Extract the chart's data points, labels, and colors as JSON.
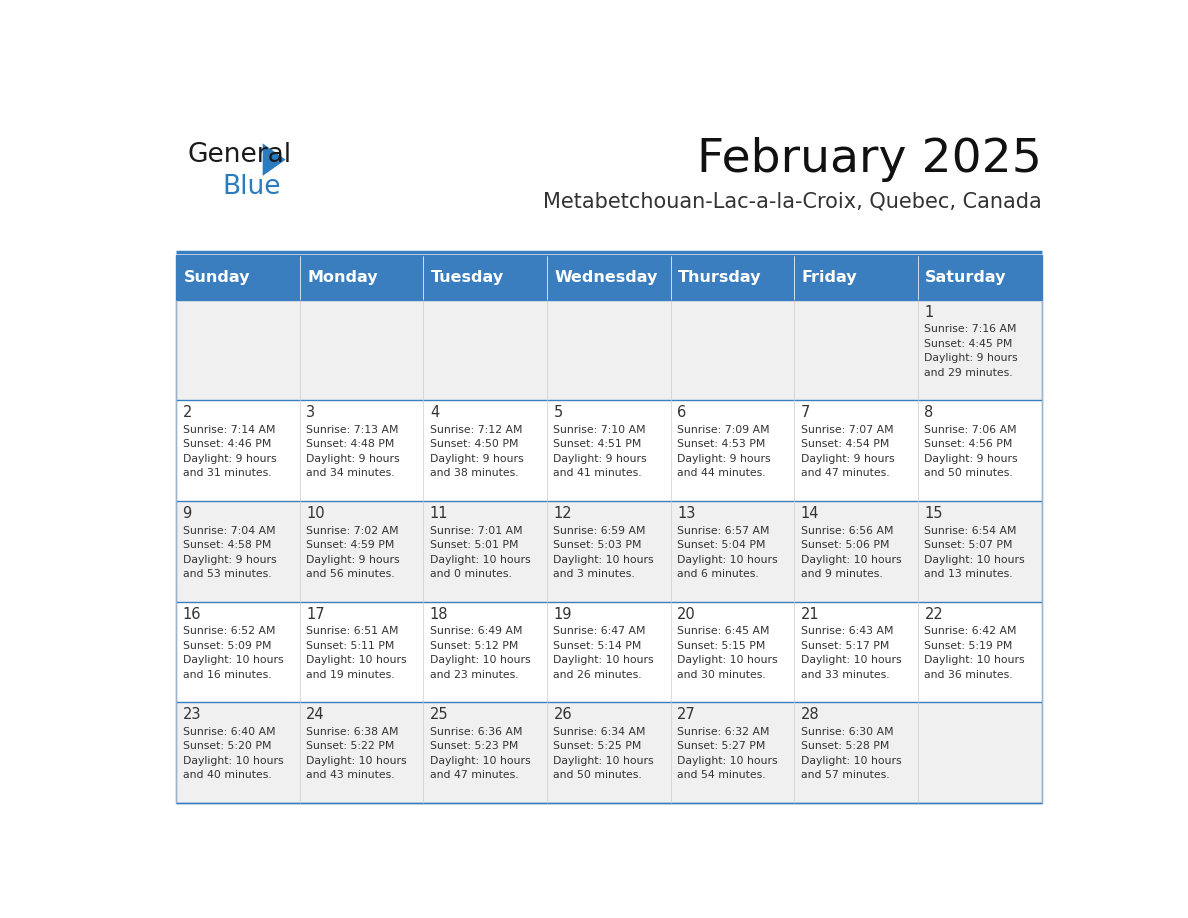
{
  "title": "February 2025",
  "subtitle": "Metabetchouan-Lac-a-la-Croix, Quebec, Canada",
  "header_bg": "#3a7ebf",
  "header_text": "#ffffff",
  "header_days": [
    "Sunday",
    "Monday",
    "Tuesday",
    "Wednesday",
    "Thursday",
    "Friday",
    "Saturday"
  ],
  "odd_row_bg": "#f0f0f0",
  "even_row_bg": "#ffffff",
  "cell_border": "#3a7ebf",
  "day_number_color": "#333333",
  "info_text_color": "#333333",
  "logo_general_color": "#1a1a1a",
  "logo_blue_color": "#2a7bbf",
  "calendar_data": [
    {
      "day": 1,
      "col": 6,
      "row": 0,
      "sunrise": "7:16 AM",
      "sunset": "4:45 PM",
      "daylight": "9 hours and 29 minutes."
    },
    {
      "day": 2,
      "col": 0,
      "row": 1,
      "sunrise": "7:14 AM",
      "sunset": "4:46 PM",
      "daylight": "9 hours and 31 minutes."
    },
    {
      "day": 3,
      "col": 1,
      "row": 1,
      "sunrise": "7:13 AM",
      "sunset": "4:48 PM",
      "daylight": "9 hours and 34 minutes."
    },
    {
      "day": 4,
      "col": 2,
      "row": 1,
      "sunrise": "7:12 AM",
      "sunset": "4:50 PM",
      "daylight": "9 hours and 38 minutes."
    },
    {
      "day": 5,
      "col": 3,
      "row": 1,
      "sunrise": "7:10 AM",
      "sunset": "4:51 PM",
      "daylight": "9 hours and 41 minutes."
    },
    {
      "day": 6,
      "col": 4,
      "row": 1,
      "sunrise": "7:09 AM",
      "sunset": "4:53 PM",
      "daylight": "9 hours and 44 minutes."
    },
    {
      "day": 7,
      "col": 5,
      "row": 1,
      "sunrise": "7:07 AM",
      "sunset": "4:54 PM",
      "daylight": "9 hours and 47 minutes."
    },
    {
      "day": 8,
      "col": 6,
      "row": 1,
      "sunrise": "7:06 AM",
      "sunset": "4:56 PM",
      "daylight": "9 hours and 50 minutes."
    },
    {
      "day": 9,
      "col": 0,
      "row": 2,
      "sunrise": "7:04 AM",
      "sunset": "4:58 PM",
      "daylight": "9 hours and 53 minutes."
    },
    {
      "day": 10,
      "col": 1,
      "row": 2,
      "sunrise": "7:02 AM",
      "sunset": "4:59 PM",
      "daylight": "9 hours and 56 minutes."
    },
    {
      "day": 11,
      "col": 2,
      "row": 2,
      "sunrise": "7:01 AM",
      "sunset": "5:01 PM",
      "daylight": "10 hours and 0 minutes."
    },
    {
      "day": 12,
      "col": 3,
      "row": 2,
      "sunrise": "6:59 AM",
      "sunset": "5:03 PM",
      "daylight": "10 hours and 3 minutes."
    },
    {
      "day": 13,
      "col": 4,
      "row": 2,
      "sunrise": "6:57 AM",
      "sunset": "5:04 PM",
      "daylight": "10 hours and 6 minutes."
    },
    {
      "day": 14,
      "col": 5,
      "row": 2,
      "sunrise": "6:56 AM",
      "sunset": "5:06 PM",
      "daylight": "10 hours and 9 minutes."
    },
    {
      "day": 15,
      "col": 6,
      "row": 2,
      "sunrise": "6:54 AM",
      "sunset": "5:07 PM",
      "daylight": "10 hours and 13 minutes."
    },
    {
      "day": 16,
      "col": 0,
      "row": 3,
      "sunrise": "6:52 AM",
      "sunset": "5:09 PM",
      "daylight": "10 hours and 16 minutes."
    },
    {
      "day": 17,
      "col": 1,
      "row": 3,
      "sunrise": "6:51 AM",
      "sunset": "5:11 PM",
      "daylight": "10 hours and 19 minutes."
    },
    {
      "day": 18,
      "col": 2,
      "row": 3,
      "sunrise": "6:49 AM",
      "sunset": "5:12 PM",
      "daylight": "10 hours and 23 minutes."
    },
    {
      "day": 19,
      "col": 3,
      "row": 3,
      "sunrise": "6:47 AM",
      "sunset": "5:14 PM",
      "daylight": "10 hours and 26 minutes."
    },
    {
      "day": 20,
      "col": 4,
      "row": 3,
      "sunrise": "6:45 AM",
      "sunset": "5:15 PM",
      "daylight": "10 hours and 30 minutes."
    },
    {
      "day": 21,
      "col": 5,
      "row": 3,
      "sunrise": "6:43 AM",
      "sunset": "5:17 PM",
      "daylight": "10 hours and 33 minutes."
    },
    {
      "day": 22,
      "col": 6,
      "row": 3,
      "sunrise": "6:42 AM",
      "sunset": "5:19 PM",
      "daylight": "10 hours and 36 minutes."
    },
    {
      "day": 23,
      "col": 0,
      "row": 4,
      "sunrise": "6:40 AM",
      "sunset": "5:20 PM",
      "daylight": "10 hours and 40 minutes."
    },
    {
      "day": 24,
      "col": 1,
      "row": 4,
      "sunrise": "6:38 AM",
      "sunset": "5:22 PM",
      "daylight": "10 hours and 43 minutes."
    },
    {
      "day": 25,
      "col": 2,
      "row": 4,
      "sunrise": "6:36 AM",
      "sunset": "5:23 PM",
      "daylight": "10 hours and 47 minutes."
    },
    {
      "day": 26,
      "col": 3,
      "row": 4,
      "sunrise": "6:34 AM",
      "sunset": "5:25 PM",
      "daylight": "10 hours and 50 minutes."
    },
    {
      "day": 27,
      "col": 4,
      "row": 4,
      "sunrise": "6:32 AM",
      "sunset": "5:27 PM",
      "daylight": "10 hours and 54 minutes."
    },
    {
      "day": 28,
      "col": 5,
      "row": 4,
      "sunrise": "6:30 AM",
      "sunset": "5:28 PM",
      "daylight": "10 hours and 57 minutes."
    }
  ],
  "num_rows": 5,
  "num_cols": 7
}
